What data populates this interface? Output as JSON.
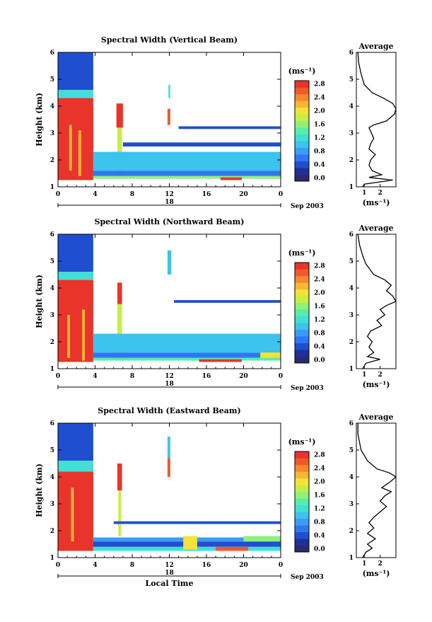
{
  "chart_data": [
    {
      "type": "heatmap",
      "title": "Spectral Width (Vertical Beam)",
      "ylabel": "Height (km)",
      "xlabel": "",
      "date_label": "Sep 2003",
      "day_label": "18",
      "x_ticks": [
        "0",
        "4",
        "8",
        "12",
        "16",
        "20",
        "0"
      ],
      "y_ticks": [
        "1",
        "2",
        "3",
        "4",
        "5",
        "6"
      ],
      "xlim": [
        0,
        24
      ],
      "ylim": [
        1,
        6
      ],
      "colorbar": {
        "unit": "(ms⁻¹)",
        "ticks": [
          "0.0",
          "0.4",
          "0.8",
          "1.2",
          "1.6",
          "2.0",
          "2.4",
          "2.8"
        ],
        "range": [
          0,
          3.0
        ]
      },
      "regions": [
        {
          "x0": 0,
          "x1": 3.8,
          "y0": 4.6,
          "y1": 6.0,
          "value": 0.5
        },
        {
          "x0": 0,
          "x1": 3.8,
          "y0": 4.3,
          "y1": 4.6,
          "value": 1.3
        },
        {
          "x0": 0,
          "x1": 3.8,
          "y0": 1.25,
          "y1": 4.3,
          "value": 3.0
        },
        {
          "x0": 1.2,
          "x1": 1.5,
          "y0": 1.6,
          "y1": 3.3,
          "value": 2.4
        },
        {
          "x0": 2.2,
          "x1": 2.5,
          "y0": 1.4,
          "y1": 3.1,
          "value": 2.3
        },
        {
          "x0": 6.3,
          "x1": 7.0,
          "y0": 3.2,
          "y1": 4.1,
          "value": 2.9
        },
        {
          "x0": 6.4,
          "x1": 6.9,
          "y0": 1.3,
          "y1": 3.2,
          "value": 1.8
        },
        {
          "x0": 3.8,
          "x1": 24,
          "y0": 1.4,
          "y1": 1.6,
          "value": 0.7
        },
        {
          "x0": 3.8,
          "x1": 24,
          "y0": 1.6,
          "y1": 2.3,
          "value": 1.0
        },
        {
          "x0": 3.8,
          "x1": 24,
          "y0": 1.3,
          "y1": 1.4,
          "value": 1.6
        },
        {
          "x0": 11.8,
          "x1": 12.1,
          "y0": 3.3,
          "y1": 3.9,
          "value": 2.8
        },
        {
          "x0": 11.9,
          "x1": 12.1,
          "y0": 4.3,
          "y1": 4.8,
          "value": 1.3
        },
        {
          "x0": 17.5,
          "x1": 19.8,
          "y0": 1.25,
          "y1": 1.35,
          "value": 2.9
        },
        {
          "x0": 7.0,
          "x1": 24,
          "y0": 2.5,
          "y1": 2.65,
          "value": 0.6
        },
        {
          "x0": 13,
          "x1": 24,
          "y0": 3.15,
          "y1": 3.25,
          "value": 0.6
        }
      ],
      "average": {
        "xlabel": "(ms⁻¹)",
        "title": "Average",
        "x_ticks": [
          "1",
          "2"
        ],
        "xlim": [
          0.5,
          3.0
        ],
        "points": [
          [
            0.6,
            6.0
          ],
          [
            0.65,
            5.6
          ],
          [
            0.8,
            5.2
          ],
          [
            1.0,
            4.8
          ],
          [
            1.5,
            4.5
          ],
          [
            2.2,
            4.3
          ],
          [
            2.8,
            4.1
          ],
          [
            3.0,
            3.9
          ],
          [
            2.9,
            3.7
          ],
          [
            2.6,
            3.55
          ],
          [
            2.4,
            3.45
          ],
          [
            1.6,
            3.3
          ],
          [
            1.3,
            3.2
          ],
          [
            1.45,
            3.0
          ],
          [
            1.6,
            2.8
          ],
          [
            1.4,
            2.6
          ],
          [
            1.3,
            2.4
          ],
          [
            1.7,
            2.2
          ],
          [
            1.4,
            2.0
          ],
          [
            1.3,
            1.8
          ],
          [
            1.5,
            1.6
          ],
          [
            2.1,
            1.45
          ],
          [
            1.3,
            1.35
          ],
          [
            2.8,
            1.25
          ],
          [
            1.0,
            1.1
          ],
          [
            0.9,
            1.0
          ]
        ]
      }
    },
    {
      "type": "heatmap",
      "title": "Spectral Width (Northward Beam)",
      "ylabel": "Height (km)",
      "xlabel": "",
      "date_label": "Sep 2003",
      "day_label": "18",
      "x_ticks": [
        "0",
        "4",
        "8",
        "12",
        "16",
        "20",
        "0"
      ],
      "y_ticks": [
        "1",
        "2",
        "3",
        "4",
        "5",
        "6"
      ],
      "xlim": [
        0,
        24
      ],
      "ylim": [
        1,
        6
      ],
      "colorbar": {
        "unit": "(ms⁻¹)",
        "ticks": [
          "0.0",
          "0.4",
          "0.8",
          "1.2",
          "1.6",
          "2.0",
          "2.4",
          "2.8"
        ],
        "range": [
          0,
          3.0
        ]
      },
      "regions": [
        {
          "x0": 0,
          "x1": 3.8,
          "y0": 4.6,
          "y1": 6.0,
          "value": 0.5
        },
        {
          "x0": 0,
          "x1": 3.8,
          "y0": 4.3,
          "y1": 4.6,
          "value": 1.4
        },
        {
          "x0": 0,
          "x1": 3.8,
          "y0": 1.25,
          "y1": 4.3,
          "value": 3.0
        },
        {
          "x0": 1.0,
          "x1": 1.3,
          "y0": 1.4,
          "y1": 3.0,
          "value": 2.3
        },
        {
          "x0": 2.6,
          "x1": 2.9,
          "y0": 1.3,
          "y1": 3.2,
          "value": 2.4
        },
        {
          "x0": 6.4,
          "x1": 6.9,
          "y0": 3.4,
          "y1": 4.2,
          "value": 2.9
        },
        {
          "x0": 6.4,
          "x1": 6.9,
          "y0": 1.5,
          "y1": 3.4,
          "value": 1.9
        },
        {
          "x0": 3.8,
          "x1": 24,
          "y0": 1.4,
          "y1": 1.6,
          "value": 0.7
        },
        {
          "x0": 3.8,
          "x1": 24,
          "y0": 1.6,
          "y1": 2.3,
          "value": 1.0
        },
        {
          "x0": 3.8,
          "x1": 24,
          "y0": 1.3,
          "y1": 1.4,
          "value": 1.5
        },
        {
          "x0": 15.2,
          "x1": 19.8,
          "y0": 1.25,
          "y1": 1.35,
          "value": 2.9
        },
        {
          "x0": 21.8,
          "x1": 24,
          "y0": 1.4,
          "y1": 1.6,
          "value": 2.0
        },
        {
          "x0": 11.8,
          "x1": 12.2,
          "y0": 4.5,
          "y1": 5.4,
          "value": 1.2
        },
        {
          "x0": 12.5,
          "x1": 24,
          "y0": 3.45,
          "y1": 3.55,
          "value": 0.6
        }
      ],
      "average": {
        "xlabel": "(ms⁻¹)",
        "title": "Average",
        "x_ticks": [
          "1",
          "2"
        ],
        "xlim": [
          0.5,
          3.0
        ],
        "points": [
          [
            0.6,
            6.0
          ],
          [
            0.7,
            5.6
          ],
          [
            0.9,
            5.2
          ],
          [
            1.1,
            4.9
          ],
          [
            1.6,
            4.5
          ],
          [
            2.3,
            4.3
          ],
          [
            2.7,
            4.1
          ],
          [
            2.4,
            3.9
          ],
          [
            2.8,
            3.7
          ],
          [
            3.0,
            3.5
          ],
          [
            2.4,
            3.35
          ],
          [
            2.0,
            3.2
          ],
          [
            2.3,
            3.0
          ],
          [
            1.8,
            2.8
          ],
          [
            2.1,
            2.6
          ],
          [
            1.4,
            2.4
          ],
          [
            1.2,
            2.2
          ],
          [
            1.5,
            2.0
          ],
          [
            1.3,
            1.8
          ],
          [
            1.6,
            1.6
          ],
          [
            1.2,
            1.45
          ],
          [
            2.0,
            1.35
          ],
          [
            1.1,
            1.2
          ],
          [
            0.9,
            1.0
          ]
        ]
      }
    },
    {
      "type": "heatmap",
      "title": "Spectral Width (Eastward Beam)",
      "ylabel": "Height (km)",
      "xlabel": "Local Time",
      "date_label": "Sep 2003",
      "day_label": "18",
      "x_ticks": [
        "0",
        "4",
        "8",
        "12",
        "16",
        "20",
        "0"
      ],
      "y_ticks": [
        "1",
        "2",
        "3",
        "4",
        "5",
        "6"
      ],
      "xlim": [
        0,
        24
      ],
      "ylim": [
        1,
        6
      ],
      "colorbar": {
        "unit": "(ms⁻¹)",
        "ticks": [
          "0.0",
          "0.4",
          "0.8",
          "1.2",
          "1.6",
          "2.0",
          "2.4",
          "2.8"
        ],
        "range": [
          0,
          3.0
        ]
      },
      "regions": [
        {
          "x0": 0,
          "x1": 3.8,
          "y0": 4.6,
          "y1": 6.0,
          "value": 0.5
        },
        {
          "x0": 0,
          "x1": 3.8,
          "y0": 4.2,
          "y1": 4.6,
          "value": 1.4
        },
        {
          "x0": 0,
          "x1": 3.8,
          "y0": 1.25,
          "y1": 4.2,
          "value": 3.0
        },
        {
          "x0": 1.4,
          "x1": 1.7,
          "y0": 1.6,
          "y1": 3.6,
          "value": 2.3
        },
        {
          "x0": 6.4,
          "x1": 6.9,
          "y0": 3.5,
          "y1": 4.5,
          "value": 2.9
        },
        {
          "x0": 6.5,
          "x1": 6.8,
          "y0": 1.8,
          "y1": 3.5,
          "value": 1.8
        },
        {
          "x0": 3.8,
          "x1": 24,
          "y0": 1.4,
          "y1": 1.6,
          "value": 0.6
        },
        {
          "x0": 3.8,
          "x1": 24,
          "y0": 1.6,
          "y1": 1.75,
          "value": 0.9
        },
        {
          "x0": 3.8,
          "x1": 24,
          "y0": 1.25,
          "y1": 1.4,
          "value": 1.4
        },
        {
          "x0": 11.8,
          "x1": 12.1,
          "y0": 4.0,
          "y1": 4.7,
          "value": 2.8
        },
        {
          "x0": 11.8,
          "x1": 12.1,
          "y0": 4.7,
          "y1": 5.5,
          "value": 1.1
        },
        {
          "x0": 13.5,
          "x1": 15.0,
          "y0": 1.3,
          "y1": 1.8,
          "value": 2.0
        },
        {
          "x0": 17.0,
          "x1": 20.5,
          "y0": 1.25,
          "y1": 1.4,
          "value": 2.8
        },
        {
          "x0": 20.0,
          "x1": 24,
          "y0": 1.6,
          "y1": 1.8,
          "value": 1.7
        },
        {
          "x0": 6.0,
          "x1": 24,
          "y0": 2.25,
          "y1": 2.35,
          "value": 0.6
        }
      ],
      "average": {
        "xlabel": "(ms⁻¹)",
        "title": "Average",
        "x_ticks": [
          "1",
          "2"
        ],
        "xlim": [
          0.5,
          3.0
        ],
        "points": [
          [
            0.6,
            6.0
          ],
          [
            0.6,
            5.6
          ],
          [
            0.8,
            5.0
          ],
          [
            1.2,
            4.6
          ],
          [
            1.8,
            4.3
          ],
          [
            2.6,
            4.15
          ],
          [
            3.0,
            4.0
          ],
          [
            2.6,
            3.8
          ],
          [
            2.1,
            3.6
          ],
          [
            2.7,
            3.45
          ],
          [
            2.3,
            3.3
          ],
          [
            2.0,
            3.1
          ],
          [
            2.4,
            2.9
          ],
          [
            2.0,
            2.7
          ],
          [
            1.6,
            2.5
          ],
          [
            1.3,
            2.3
          ],
          [
            1.6,
            2.1
          ],
          [
            1.2,
            1.9
          ],
          [
            1.7,
            1.7
          ],
          [
            1.2,
            1.5
          ],
          [
            1.5,
            1.35
          ],
          [
            1.1,
            1.2
          ],
          [
            0.9,
            1.0
          ]
        ]
      }
    }
  ]
}
